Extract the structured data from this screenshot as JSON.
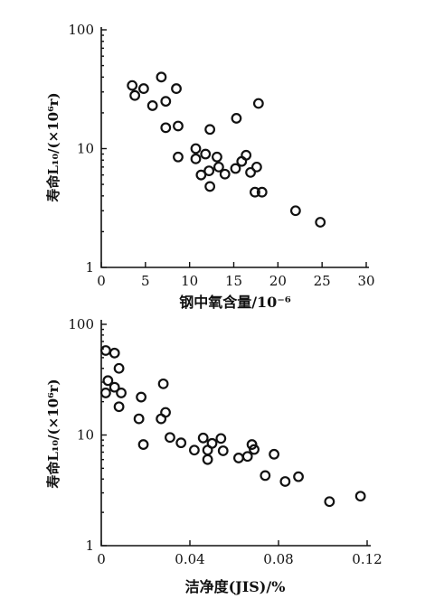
{
  "chart_data": [
    {
      "type": "scatter",
      "xlabel": "钢中氧含量/10⁻⁶",
      "ylabel": "寿命L₁₀/(×10⁶r)",
      "xlim": [
        0,
        30
      ],
      "ylim": [
        1,
        100
      ],
      "yscale": "log",
      "grid": false,
      "x_ticks": [
        "0",
        "5",
        "10",
        "15",
        "20",
        "25",
        "30"
      ],
      "y_ticks": [
        "1",
        "10",
        "100"
      ],
      "points": [
        {
          "x": 3.5,
          "y": 34
        },
        {
          "x": 3.8,
          "y": 28
        },
        {
          "x": 4.8,
          "y": 32
        },
        {
          "x": 5.8,
          "y": 23
        },
        {
          "x": 6.8,
          "y": 40
        },
        {
          "x": 7.3,
          "y": 25
        },
        {
          "x": 7.3,
          "y": 15
        },
        {
          "x": 8.5,
          "y": 32
        },
        {
          "x": 8.7,
          "y": 15.5
        },
        {
          "x": 8.7,
          "y": 8.5
        },
        {
          "x": 10.7,
          "y": 10
        },
        {
          "x": 10.7,
          "y": 8.2
        },
        {
          "x": 11.3,
          "y": 6
        },
        {
          "x": 11.8,
          "y": 9
        },
        {
          "x": 12.3,
          "y": 14.5
        },
        {
          "x": 12.2,
          "y": 6.5
        },
        {
          "x": 12.3,
          "y": 4.8
        },
        {
          "x": 13.1,
          "y": 8.5
        },
        {
          "x": 13.3,
          "y": 7
        },
        {
          "x": 14.0,
          "y": 6.1
        },
        {
          "x": 15.3,
          "y": 18
        },
        {
          "x": 15.2,
          "y": 6.8
        },
        {
          "x": 15.9,
          "y": 7.8
        },
        {
          "x": 16.4,
          "y": 8.8
        },
        {
          "x": 16.9,
          "y": 6.3
        },
        {
          "x": 17.4,
          "y": 4.3
        },
        {
          "x": 17.6,
          "y": 7.0
        },
        {
          "x": 17.8,
          "y": 24
        },
        {
          "x": 18.2,
          "y": 4.3
        },
        {
          "x": 22.0,
          "y": 3.0
        },
        {
          "x": 24.8,
          "y": 2.4
        }
      ]
    },
    {
      "type": "scatter",
      "xlabel": "洁净度(JIS)/%",
      "ylabel": "寿命L₁₀/(×10⁶r)",
      "xlim": [
        0,
        0.12
      ],
      "ylim": [
        1,
        100
      ],
      "yscale": "log",
      "grid": false,
      "x_ticks": [
        "0",
        "0.04",
        "0.08",
        "0.12"
      ],
      "y_ticks": [
        "1",
        "10",
        "100"
      ],
      "points": [
        {
          "x": 0.002,
          "y": 58
        },
        {
          "x": 0.006,
          "y": 55
        },
        {
          "x": 0.003,
          "y": 31
        },
        {
          "x": 0.006,
          "y": 27
        },
        {
          "x": 0.002,
          "y": 24
        },
        {
          "x": 0.008,
          "y": 40
        },
        {
          "x": 0.008,
          "y": 18
        },
        {
          "x": 0.009,
          "y": 24
        },
        {
          "x": 0.017,
          "y": 14
        },
        {
          "x": 0.018,
          "y": 22
        },
        {
          "x": 0.019,
          "y": 8.2
        },
        {
          "x": 0.027,
          "y": 14
        },
        {
          "x": 0.028,
          "y": 29
        },
        {
          "x": 0.029,
          "y": 16
        },
        {
          "x": 0.031,
          "y": 9.5
        },
        {
          "x": 0.036,
          "y": 8.5
        },
        {
          "x": 0.042,
          "y": 7.3
        },
        {
          "x": 0.046,
          "y": 9.4
        },
        {
          "x": 0.048,
          "y": 7.3
        },
        {
          "x": 0.048,
          "y": 6.0
        },
        {
          "x": 0.05,
          "y": 8.4
        },
        {
          "x": 0.054,
          "y": 9.3
        },
        {
          "x": 0.055,
          "y": 7.2
        },
        {
          "x": 0.062,
          "y": 6.2
        },
        {
          "x": 0.066,
          "y": 6.4
        },
        {
          "x": 0.068,
          "y": 8.2
        },
        {
          "x": 0.069,
          "y": 7.4
        },
        {
          "x": 0.074,
          "y": 4.3
        },
        {
          "x": 0.078,
          "y": 6.7
        },
        {
          "x": 0.083,
          "y": 3.8
        },
        {
          "x": 0.089,
          "y": 4.2
        },
        {
          "x": 0.103,
          "y": 2.5
        },
        {
          "x": 0.117,
          "y": 2.8
        }
      ]
    }
  ]
}
